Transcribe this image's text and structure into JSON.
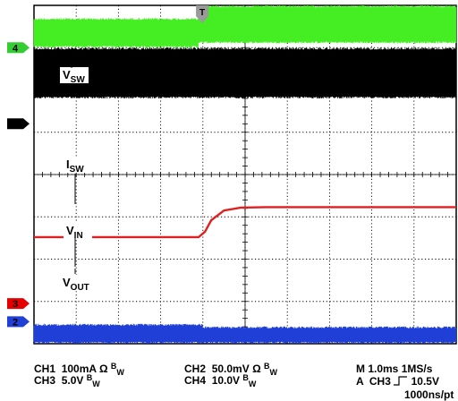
{
  "chart_data": {
    "type": "line",
    "title": "",
    "grid": true,
    "divisions": {
      "horizontal": 10,
      "vertical": 8
    },
    "trigger_marker": "T",
    "channel_markers": [
      {
        "label": "4",
        "color": "#33cc33"
      },
      {
        "label": "1",
        "color": "#000000"
      },
      {
        "label": "3",
        "color": "#e60000"
      },
      {
        "label": "2",
        "color": "#1f3fd6"
      }
    ],
    "series": [
      {
        "name": "V_SW",
        "label_main": "V",
        "label_sub": "SW",
        "channel": 4,
        "color": "#44ee22",
        "description_values": {
          "low_band_divs": [
            0.3,
            1.0
          ],
          "high_band_divs": [
            0.0,
            0.9
          ],
          "step_at_div": 3.9
        }
      },
      {
        "name": "I_SW",
        "label_main": "I",
        "label_sub": "SW",
        "channel": 1,
        "color": "#000000",
        "description_values": {
          "band_divs": [
            1.0,
            2.2
          ]
        }
      },
      {
        "name": "V_IN",
        "label_main": "V",
        "label_sub": "IN",
        "channel": 3,
        "color": "#e02020",
        "x_div": [
          0,
          1,
          2,
          3,
          3.9,
          4.05,
          4.2,
          4.5,
          4.9,
          5.5,
          6,
          7,
          8,
          9,
          10
        ],
        "y_div": [
          5.48,
          5.48,
          5.48,
          5.48,
          5.48,
          5.35,
          5.08,
          4.85,
          4.78,
          4.77,
          4.77,
          4.77,
          4.77,
          4.77,
          4.77
        ]
      },
      {
        "name": "V_OUT",
        "label_main": "V",
        "label_sub": "OUT",
        "channel": 2,
        "color": "#1f3fd6",
        "description_values": {
          "band_divs": [
            7.55,
            8.0
          ],
          "step_at_div": 4.0
        }
      }
    ],
    "settings": {
      "ch1": "100mA",
      "ch2": "50.0mV",
      "ch3": "5.0V",
      "ch4": "10.0V",
      "ohm": "Ω",
      "bw": "B",
      "bw_sub": "W",
      "ch1_label": "CH1",
      "ch2_label": "CH2",
      "ch3_label": "CH3",
      "ch4_label": "CH4",
      "timebase": "M 1.0ms",
      "sample_rate": "1MS/s",
      "trigger": "A  CH3",
      "trigger_level": "10.5V",
      "trigger_edge_symbol": "rising-edge",
      "record": "1000ns/pt"
    }
  }
}
